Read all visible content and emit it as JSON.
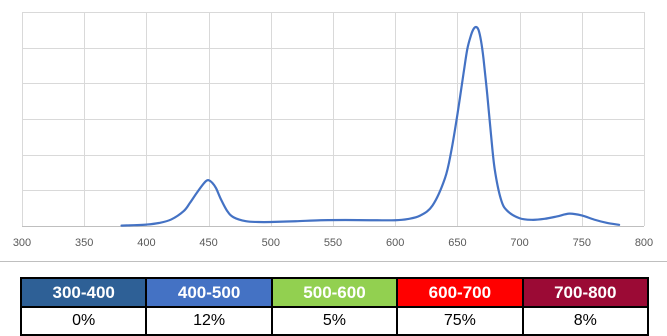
{
  "chart_data": {
    "type": "line",
    "title": "",
    "xlabel": "",
    "ylabel": "",
    "xlim": [
      300,
      800
    ],
    "x_ticks": [
      300,
      350,
      400,
      450,
      500,
      550,
      600,
      650,
      700,
      750,
      800
    ],
    "grid": true,
    "line_color": "#4472c4",
    "series": [
      {
        "x": [
          380,
          390,
          400,
          410,
          420,
          430,
          435,
          440,
          445,
          448,
          450,
          453,
          456,
          460,
          465,
          470,
          480,
          490,
          500,
          520,
          540,
          560,
          580,
          600,
          610,
          620,
          630,
          640,
          645,
          650,
          655,
          658,
          661,
          663,
          665,
          667,
          669,
          671,
          674,
          677,
          680,
          685,
          690,
          700,
          710,
          720,
          730,
          740,
          750,
          760,
          770,
          780
        ],
        "y": [
          0.2,
          0.4,
          0.7,
          1.5,
          3.3,
          7.5,
          11.6,
          16.2,
          20.5,
          22.6,
          23.0,
          21.7,
          19.0,
          13.3,
          7.5,
          4.4,
          2.4,
          2.0,
          2.0,
          2.4,
          2.9,
          3.0,
          2.9,
          2.9,
          3.5,
          5.2,
          10.3,
          24.0,
          37.4,
          56.0,
          77.0,
          89.0,
          96.0,
          99.0,
          100.0,
          98.5,
          93.0,
          84.0,
          66.0,
          46.0,
          28.5,
          13.4,
          7.7,
          3.9,
          3.1,
          3.6,
          4.8,
          6.2,
          5.3,
          3.2,
          1.6,
          0.6
        ]
      }
    ]
  },
  "band_table": {
    "bands": [
      {
        "label": "300-400",
        "percent": "0%",
        "color": "#2e6096"
      },
      {
        "label": "400-500",
        "percent": "12%",
        "color": "#4472c4"
      },
      {
        "label": "500-600",
        "percent": "5%",
        "color": "#92d050"
      },
      {
        "label": "600-700",
        "percent": "75%",
        "color": "#ff0000"
      },
      {
        "label": "700-800",
        "percent": "8%",
        "color": "#9b0a35"
      }
    ]
  }
}
